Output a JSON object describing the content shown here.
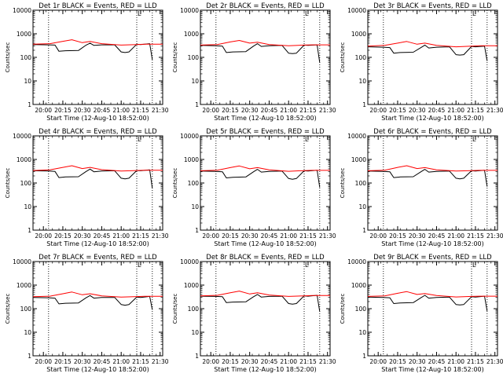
{
  "chart_data": [
    {
      "type": "line",
      "title": "Det 1r BLACK = Events, RED = LLD",
      "xlabel": "Start Time (12-Aug-10 18:52:00)",
      "ylabel": "Counts/sec",
      "ylog": true,
      "ylim": [
        1,
        10000
      ],
      "yticks": [
        "1",
        "10",
        "100",
        "1000",
        "10000"
      ],
      "xlim": [
        "19:52",
        "21:32"
      ],
      "xticks": [
        "20:00",
        "20:15",
        "20:30",
        "20:45",
        "21:00",
        "21:15",
        "21:30"
      ],
      "markers": [
        "20:04",
        "21:12",
        "21:24"
      ],
      "flag": "L",
      "series": [
        {
          "color": "#000000",
          "x": [
            "19:52",
            "20:04",
            "20:09",
            "20:12",
            "20:17",
            "20:27",
            "20:33",
            "20:36",
            "20:39",
            "20:45",
            "20:55",
            "21:00",
            "21:03",
            "21:06",
            "21:12",
            "21:15",
            "21:22",
            "21:24"
          ],
          "values": [
            350,
            340,
            330,
            180,
            190,
            195,
            330,
            400,
            320,
            340,
            340,
            170,
            160,
            170,
            360,
            350,
            380,
            80
          ]
        },
        {
          "color": "#ff0000",
          "x": [
            "19:52",
            "20:05",
            "20:15",
            "20:22",
            "20:30",
            "20:36",
            "20:45",
            "21:00",
            "21:12",
            "21:18",
            "21:32"
          ],
          "values": [
            360,
            380,
            480,
            560,
            420,
            470,
            380,
            330,
            350,
            360,
            360
          ]
        }
      ]
    },
    {
      "type": "line",
      "title": "Det 2r BLACK = Events, RED = LLD",
      "xlabel": "Start Time (12-Aug-10 18:52:00)",
      "ylabel": "Counts/sec",
      "ylog": true,
      "ylim": [
        1,
        10000
      ],
      "yticks": [
        "1",
        "10",
        "100",
        "1000",
        "10000"
      ],
      "xlim": [
        "19:52",
        "21:32"
      ],
      "xticks": [
        "20:00",
        "20:15",
        "20:30",
        "20:45",
        "21:00",
        "21:15",
        "21:30"
      ],
      "markers": [
        "20:04",
        "21:12",
        "21:24"
      ],
      "flag": "L",
      "series": [
        {
          "color": "#000000",
          "x": [
            "19:52",
            "20:04",
            "20:09",
            "20:12",
            "20:17",
            "20:27",
            "20:33",
            "20:36",
            "20:39",
            "20:45",
            "20:55",
            "21:00",
            "21:03",
            "21:06",
            "21:12",
            "21:15",
            "21:22",
            "21:24"
          ],
          "values": [
            320,
            310,
            300,
            160,
            170,
            175,
            300,
            380,
            290,
            310,
            320,
            150,
            145,
            150,
            330,
            320,
            340,
            60
          ]
        },
        {
          "color": "#ff0000",
          "x": [
            "19:52",
            "20:05",
            "20:15",
            "20:22",
            "20:30",
            "20:36",
            "20:45",
            "21:00",
            "21:12",
            "21:18",
            "21:32"
          ],
          "values": [
            330,
            350,
            450,
            520,
            400,
            440,
            350,
            310,
            330,
            340,
            340
          ]
        }
      ]
    },
    {
      "type": "line",
      "title": "Det 3r BLACK = Events, RED = LLD",
      "xlabel": "Start Time (12-Aug-10 18:52:00)",
      "ylabel": "Counts/sec",
      "ylog": true,
      "ylim": [
        1,
        10000
      ],
      "yticks": [
        "1",
        "10",
        "100",
        "1000",
        "10000"
      ],
      "xlim": [
        "19:52",
        "21:32"
      ],
      "xticks": [
        "20:00",
        "20:15",
        "20:30",
        "20:45",
        "21:00",
        "21:15",
        "21:30"
      ],
      "markers": [
        "20:04",
        "21:12",
        "21:24"
      ],
      "flag": "L",
      "series": [
        {
          "color": "#000000",
          "x": [
            "19:52",
            "20:04",
            "20:09",
            "20:12",
            "20:17",
            "20:27",
            "20:33",
            "20:36",
            "20:39",
            "20:45",
            "20:55",
            "21:00",
            "21:03",
            "21:06",
            "21:12",
            "21:15",
            "21:22",
            "21:24"
          ],
          "values": [
            280,
            270,
            260,
            150,
            160,
            165,
            260,
            330,
            250,
            270,
            280,
            130,
            125,
            130,
            290,
            280,
            300,
            70
          ]
        },
        {
          "color": "#ff0000",
          "x": [
            "19:52",
            "20:05",
            "20:15",
            "20:22",
            "20:30",
            "20:36",
            "20:45",
            "21:00",
            "21:12",
            "21:18",
            "21:32"
          ],
          "values": [
            300,
            320,
            400,
            470,
            360,
            400,
            320,
            280,
            300,
            310,
            310
          ]
        }
      ]
    },
    {
      "type": "line",
      "title": "Det 4r BLACK = Events, RED = LLD",
      "xlabel": "Start Time (12-Aug-10 18:52:00)",
      "ylabel": "Counts/sec",
      "ylog": true,
      "ylim": [
        1,
        10000
      ],
      "yticks": [
        "1",
        "10",
        "100",
        "1000",
        "10000"
      ],
      "xlim": [
        "19:52",
        "21:32"
      ],
      "xticks": [
        "20:00",
        "20:15",
        "20:30",
        "20:45",
        "21:00",
        "21:15",
        "21:30"
      ],
      "markers": [
        "20:04",
        "21:12",
        "21:24"
      ],
      "flag": "L",
      "series": [
        {
          "color": "#000000",
          "x": [
            "19:52",
            "20:04",
            "20:09",
            "20:12",
            "20:17",
            "20:27",
            "20:33",
            "20:36",
            "20:39",
            "20:45",
            "20:55",
            "21:00",
            "21:03",
            "21:06",
            "21:12",
            "21:15",
            "21:22",
            "21:24"
          ],
          "values": [
            330,
            320,
            310,
            170,
            180,
            185,
            310,
            390,
            300,
            320,
            330,
            160,
            150,
            160,
            340,
            330,
            360,
            60
          ]
        },
        {
          "color": "#ff0000",
          "x": [
            "19:52",
            "20:05",
            "20:15",
            "20:22",
            "20:30",
            "20:36",
            "20:45",
            "21:00",
            "21:12",
            "21:18",
            "21:32"
          ],
          "values": [
            340,
            360,
            460,
            540,
            410,
            460,
            370,
            320,
            340,
            350,
            350
          ]
        }
      ]
    },
    {
      "type": "line",
      "title": "Det 5r BLACK = Events, RED = LLD",
      "xlabel": "Start Time (12-Aug-10 18:52:00)",
      "ylabel": "Counts/sec",
      "ylog": true,
      "ylim": [
        1,
        10000
      ],
      "yticks": [
        "1",
        "10",
        "100",
        "1000",
        "10000"
      ],
      "xlim": [
        "19:52",
        "21:32"
      ],
      "xticks": [
        "20:00",
        "20:15",
        "20:30",
        "20:45",
        "21:00",
        "21:15",
        "21:30"
      ],
      "markers": [
        "20:04",
        "21:12",
        "21:24"
      ],
      "flag": "L",
      "series": [
        {
          "color": "#000000",
          "x": [
            "19:52",
            "20:04",
            "20:09",
            "20:12",
            "20:17",
            "20:27",
            "20:33",
            "20:36",
            "20:39",
            "20:45",
            "20:55",
            "21:00",
            "21:03",
            "21:06",
            "21:12",
            "21:15",
            "21:22",
            "21:24"
          ],
          "values": [
            320,
            310,
            300,
            165,
            175,
            180,
            300,
            380,
            290,
            310,
            320,
            155,
            145,
            155,
            330,
            320,
            350,
            65
          ]
        },
        {
          "color": "#ff0000",
          "x": [
            "19:52",
            "20:05",
            "20:15",
            "20:22",
            "20:30",
            "20:36",
            "20:45",
            "21:00",
            "21:12",
            "21:18",
            "21:32"
          ],
          "values": [
            330,
            350,
            450,
            530,
            400,
            450,
            360,
            315,
            335,
            345,
            345
          ]
        }
      ]
    },
    {
      "type": "line",
      "title": "Det 6r BLACK = Events, RED = LLD",
      "xlabel": "Start Time (12-Aug-10 18:52:00)",
      "ylabel": "Counts/sec",
      "ylog": true,
      "ylim": [
        1,
        10000
      ],
      "yticks": [
        "1",
        "10",
        "100",
        "1000",
        "10000"
      ],
      "xlim": [
        "19:52",
        "21:32"
      ],
      "xticks": [
        "20:00",
        "20:15",
        "20:30",
        "20:45",
        "21:00",
        "21:15",
        "21:30"
      ],
      "markers": [
        "20:04",
        "21:12",
        "21:24"
      ],
      "flag": "L",
      "series": [
        {
          "color": "#000000",
          "x": [
            "19:52",
            "20:04",
            "20:09",
            "20:12",
            "20:17",
            "20:27",
            "20:33",
            "20:36",
            "20:39",
            "20:45",
            "20:55",
            "21:00",
            "21:03",
            "21:06",
            "21:12",
            "21:15",
            "21:22",
            "21:24"
          ],
          "values": [
            320,
            310,
            300,
            170,
            180,
            185,
            300,
            380,
            290,
            310,
            320,
            160,
            150,
            160,
            330,
            320,
            350,
            70
          ]
        },
        {
          "color": "#ff0000",
          "x": [
            "19:52",
            "20:05",
            "20:15",
            "20:22",
            "20:30",
            "20:36",
            "20:45",
            "21:00",
            "21:12",
            "21:18",
            "21:32"
          ],
          "values": [
            330,
            350,
            460,
            540,
            410,
            450,
            360,
            320,
            335,
            345,
            345
          ]
        }
      ]
    },
    {
      "type": "line",
      "title": "Det 7r BLACK = Events, RED = LLD",
      "xlabel": "Start Time (12-Aug-10 18:52:00)",
      "ylabel": "Counts/sec",
      "ylog": true,
      "ylim": [
        1,
        10000
      ],
      "yticks": [
        "1",
        "10",
        "100",
        "1000",
        "10000"
      ],
      "xlim": [
        "19:52",
        "21:32"
      ],
      "xticks": [
        "20:00",
        "20:15",
        "20:30",
        "20:45",
        "21:00",
        "21:15",
        "21:30"
      ],
      "markers": [
        "20:04",
        "21:12",
        "21:24"
      ],
      "flag": "L",
      "series": [
        {
          "color": "#000000",
          "x": [
            "19:52",
            "20:04",
            "20:09",
            "20:12",
            "20:17",
            "20:27",
            "20:33",
            "20:36",
            "20:39",
            "20:45",
            "20:55",
            "21:00",
            "21:03",
            "21:06",
            "21:12",
            "21:15",
            "21:22",
            "21:24"
          ],
          "values": [
            300,
            290,
            280,
            160,
            170,
            175,
            290,
            360,
            280,
            300,
            300,
            150,
            140,
            150,
            310,
            300,
            330,
            90
          ]
        },
        {
          "color": "#ff0000",
          "x": [
            "19:52",
            "20:05",
            "20:15",
            "20:22",
            "20:30",
            "20:36",
            "20:45",
            "21:00",
            "21:12",
            "21:18",
            "21:32"
          ],
          "values": [
            320,
            340,
            430,
            510,
            390,
            430,
            350,
            310,
            325,
            335,
            335
          ]
        }
      ]
    },
    {
      "type": "line",
      "title": "Det 8r BLACK = Events, RED = LLD",
      "xlabel": "Start Time (12-Aug-10 18:52:00)",
      "ylabel": "Counts/sec",
      "ylog": true,
      "ylim": [
        1,
        10000
      ],
      "yticks": [
        "1",
        "10",
        "100",
        "1000",
        "10000"
      ],
      "xlim": [
        "19:52",
        "21:32"
      ],
      "xticks": [
        "20:00",
        "20:15",
        "20:30",
        "20:45",
        "21:00",
        "21:15",
        "21:30"
      ],
      "markers": [
        "20:04",
        "21:12",
        "21:24"
      ],
      "flag": "L",
      "series": [
        {
          "color": "#000000",
          "x": [
            "19:52",
            "20:04",
            "20:09",
            "20:12",
            "20:17",
            "20:27",
            "20:33",
            "20:36",
            "20:39",
            "20:45",
            "20:55",
            "21:00",
            "21:03",
            "21:06",
            "21:12",
            "21:15",
            "21:22",
            "21:24"
          ],
          "values": [
            340,
            330,
            320,
            180,
            190,
            195,
            320,
            400,
            310,
            330,
            340,
            165,
            155,
            165,
            350,
            340,
            370,
            75
          ]
        },
        {
          "color": "#ff0000",
          "x": [
            "19:52",
            "20:05",
            "20:15",
            "20:22",
            "20:30",
            "20:36",
            "20:45",
            "21:00",
            "21:12",
            "21:18",
            "21:32"
          ],
          "values": [
            350,
            370,
            470,
            560,
            420,
            470,
            380,
            330,
            350,
            360,
            360
          ]
        }
      ]
    },
    {
      "type": "line",
      "title": "Det 9r BLACK = Events, RED = LLD",
      "xlabel": "Start Time (12-Aug-10 18:52:00)",
      "ylabel": "Counts/sec",
      "ylog": true,
      "ylim": [
        1,
        10000
      ],
      "yticks": [
        "1",
        "10",
        "100",
        "1000",
        "10000"
      ],
      "xlim": [
        "19:52",
        "21:32"
      ],
      "xticks": [
        "20:00",
        "20:15",
        "20:30",
        "20:45",
        "21:00",
        "21:15",
        "21:30"
      ],
      "markers": [
        "20:04",
        "21:12",
        "21:24"
      ],
      "flag": "L",
      "series": [
        {
          "color": "#000000",
          "x": [
            "19:52",
            "20:04",
            "20:09",
            "20:12",
            "20:17",
            "20:27",
            "20:33",
            "20:36",
            "20:39",
            "20:45",
            "20:55",
            "21:00",
            "21:03",
            "21:06",
            "21:12",
            "21:15",
            "21:22",
            "21:24"
          ],
          "values": [
            310,
            300,
            290,
            165,
            175,
            180,
            290,
            370,
            280,
            300,
            310,
            150,
            145,
            150,
            320,
            310,
            340,
            80
          ]
        },
        {
          "color": "#ff0000",
          "x": [
            "19:52",
            "20:05",
            "20:15",
            "20:22",
            "20:30",
            "20:36",
            "20:45",
            "21:00",
            "21:12",
            "21:18",
            "21:32"
          ],
          "values": [
            330,
            350,
            450,
            530,
            400,
            440,
            360,
            315,
            330,
            340,
            340
          ]
        }
      ]
    }
  ]
}
